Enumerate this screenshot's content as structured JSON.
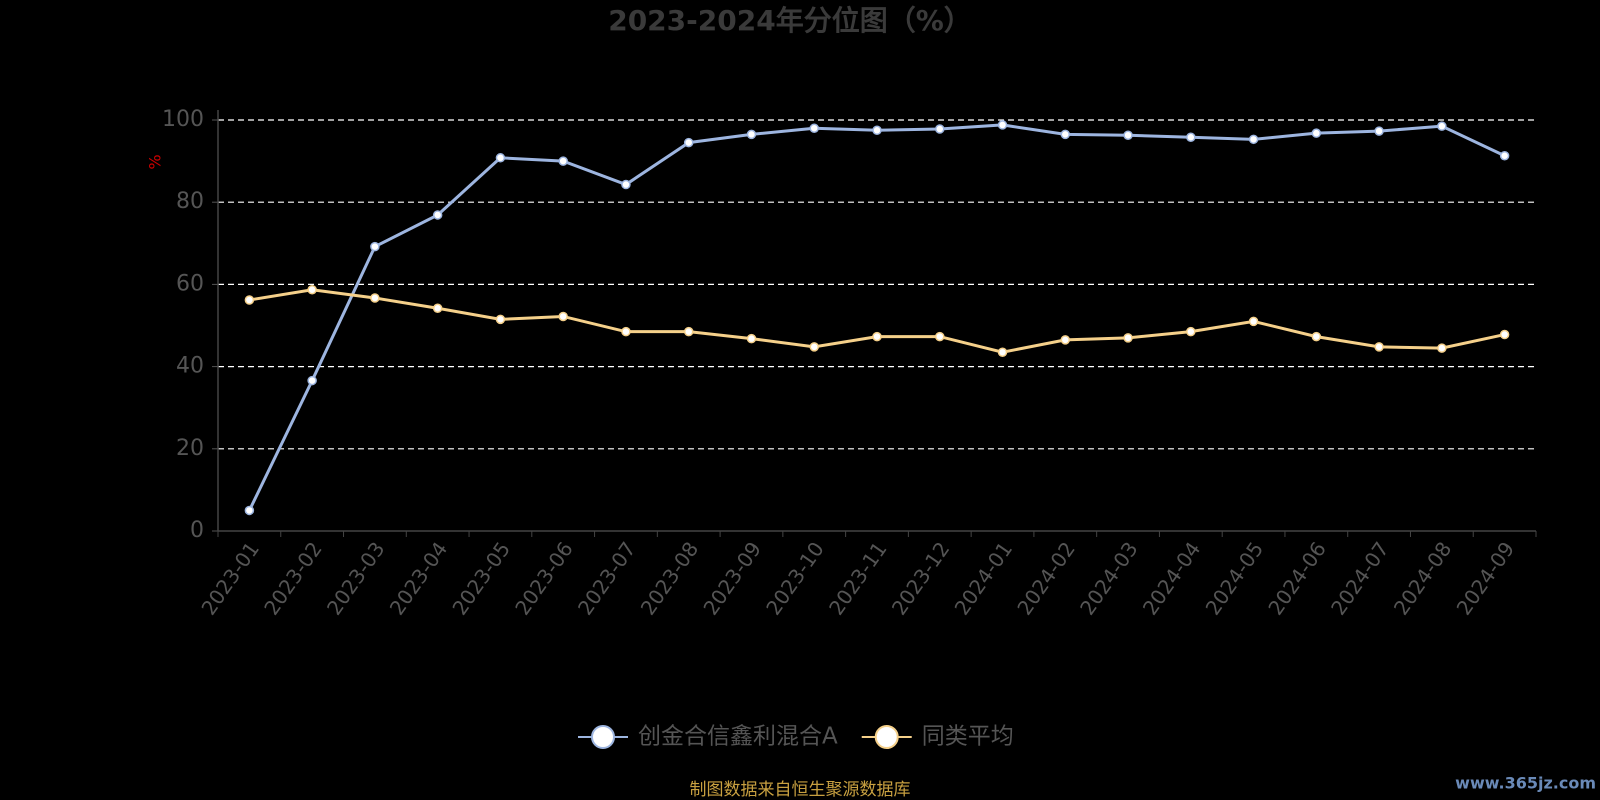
{
  "chart_data": {
    "type": "line",
    "title": "2023-2024年分位图（%）",
    "y_label": "%",
    "categories": [
      "2023-01",
      "2023-02",
      "2023-03",
      "2023-04",
      "2023-05",
      "2023-06",
      "2023-07",
      "2023-08",
      "2023-09",
      "2023-10",
      "2023-11",
      "2023-12",
      "2024-01",
      "2024-02",
      "2024-03",
      "2024-04",
      "2024-05",
      "2024-06",
      "2024-07",
      "2024-08",
      "2024-09"
    ],
    "series": [
      {
        "name": "创金合信鑫利混合A",
        "color": "#9db5e0",
        "values": [
          5.0,
          36.6,
          69.2,
          76.9,
          90.8,
          90.0,
          84.3,
          94.5,
          96.5,
          98.0,
          97.5,
          97.8,
          98.8,
          96.5,
          96.3,
          95.8,
          95.3,
          96.8,
          97.3,
          98.5,
          91.3
        ]
      },
      {
        "name": "同类平均",
        "color": "#f5d08a",
        "values": [
          56.2,
          58.7,
          56.7,
          54.2,
          51.5,
          52.2,
          48.5,
          48.5,
          46.8,
          44.8,
          47.3,
          47.3,
          43.5,
          46.5,
          47.0,
          48.5,
          51.0,
          47.3,
          44.8,
          44.5,
          47.8
        ]
      }
    ],
    "ylim": [
      0,
      100
    ],
    "yticks": [
      0,
      20,
      40,
      60,
      80,
      100
    ],
    "grid": true,
    "legend": "bottom",
    "source": "制图数据来自恒生聚源数据库",
    "watermark": "www.365jz.com"
  }
}
